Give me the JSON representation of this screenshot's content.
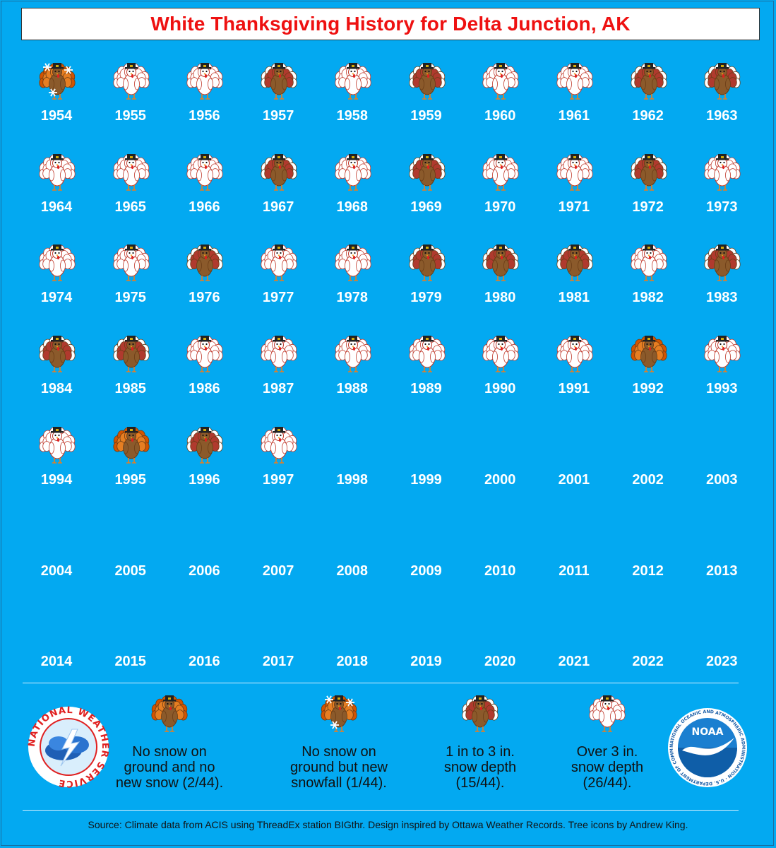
{
  "title": "White Thanksgiving History for Delta Junction, AK",
  "colors": {
    "background": "#03a9f1",
    "title": "#ee1111",
    "turkey_brown": "#8b5a2b",
    "feather_red": "#c0392b",
    "feather_orange": "#e67e22"
  },
  "chart_data": {
    "type": "table",
    "categories": [
      "no_snow_no_new",
      "no_snow_new_snowfall",
      "1_to_3_in",
      "over_3_in"
    ],
    "years": [
      {
        "year": "1954",
        "cat": "new"
      },
      {
        "year": "1955",
        "cat": "over3"
      },
      {
        "year": "1956",
        "cat": "over3"
      },
      {
        "year": "1957",
        "cat": "1to3"
      },
      {
        "year": "1958",
        "cat": "over3"
      },
      {
        "year": "1959",
        "cat": "1to3"
      },
      {
        "year": "1960",
        "cat": "over3"
      },
      {
        "year": "1961",
        "cat": "over3"
      },
      {
        "year": "1962",
        "cat": "1to3"
      },
      {
        "year": "1963",
        "cat": "1to3"
      },
      {
        "year": "1964",
        "cat": "over3"
      },
      {
        "year": "1965",
        "cat": "over3"
      },
      {
        "year": "1966",
        "cat": "over3"
      },
      {
        "year": "1967",
        "cat": "1to3"
      },
      {
        "year": "1968",
        "cat": "over3"
      },
      {
        "year": "1969",
        "cat": "1to3"
      },
      {
        "year": "1970",
        "cat": "over3"
      },
      {
        "year": "1971",
        "cat": "over3"
      },
      {
        "year": "1972",
        "cat": "1to3"
      },
      {
        "year": "1973",
        "cat": "over3"
      },
      {
        "year": "1974",
        "cat": "over3"
      },
      {
        "year": "1975",
        "cat": "over3"
      },
      {
        "year": "1976",
        "cat": "1to3"
      },
      {
        "year": "1977",
        "cat": "over3"
      },
      {
        "year": "1978",
        "cat": "over3"
      },
      {
        "year": "1979",
        "cat": "1to3"
      },
      {
        "year": "1980",
        "cat": "1to3"
      },
      {
        "year": "1981",
        "cat": "1to3"
      },
      {
        "year": "1982",
        "cat": "over3"
      },
      {
        "year": "1983",
        "cat": "1to3"
      },
      {
        "year": "1984",
        "cat": "1to3"
      },
      {
        "year": "1985",
        "cat": "1to3"
      },
      {
        "year": "1986",
        "cat": "over3"
      },
      {
        "year": "1987",
        "cat": "over3"
      },
      {
        "year": "1988",
        "cat": "over3"
      },
      {
        "year": "1989",
        "cat": "over3"
      },
      {
        "year": "1990",
        "cat": "over3"
      },
      {
        "year": "1991",
        "cat": "over3"
      },
      {
        "year": "1992",
        "cat": "none"
      },
      {
        "year": "1993",
        "cat": "over3"
      },
      {
        "year": "1994",
        "cat": "over3"
      },
      {
        "year": "1995",
        "cat": "none"
      },
      {
        "year": "1996",
        "cat": "1to3"
      },
      {
        "year": "1997",
        "cat": "over3"
      },
      {
        "year": "1998",
        "cat": ""
      },
      {
        "year": "1999",
        "cat": ""
      },
      {
        "year": "2000",
        "cat": ""
      },
      {
        "year": "2001",
        "cat": ""
      },
      {
        "year": "2002",
        "cat": ""
      },
      {
        "year": "2003",
        "cat": ""
      },
      {
        "year": "2004",
        "cat": ""
      },
      {
        "year": "2005",
        "cat": ""
      },
      {
        "year": "2006",
        "cat": ""
      },
      {
        "year": "2007",
        "cat": ""
      },
      {
        "year": "2008",
        "cat": ""
      },
      {
        "year": "2009",
        "cat": ""
      },
      {
        "year": "2010",
        "cat": ""
      },
      {
        "year": "2011",
        "cat": ""
      },
      {
        "year": "2012",
        "cat": ""
      },
      {
        "year": "2013",
        "cat": ""
      },
      {
        "year": "2014",
        "cat": ""
      },
      {
        "year": "2015",
        "cat": ""
      },
      {
        "year": "2016",
        "cat": ""
      },
      {
        "year": "2017",
        "cat": ""
      },
      {
        "year": "2018",
        "cat": ""
      },
      {
        "year": "2019",
        "cat": ""
      },
      {
        "year": "2020",
        "cat": ""
      },
      {
        "year": "2021",
        "cat": ""
      },
      {
        "year": "2022",
        "cat": ""
      },
      {
        "year": "2023",
        "cat": ""
      }
    ],
    "legend": [
      {
        "key": "none",
        "label": "No snow on\nground and no\nnew snow (2/44)."
      },
      {
        "key": "new",
        "label": "No snow on\nground but new\nsnowfall (1/44)."
      },
      {
        "key": "1to3",
        "label": "1 in to 3 in.\nsnow depth\n(15/44)."
      },
      {
        "key": "over3",
        "label": "Over 3 in.\nsnow depth\n(26/44)."
      }
    ]
  },
  "logos": {
    "nws": {
      "text": "NATIONAL WEATHER SERVICE"
    },
    "noaa": {
      "center": "NOAA",
      "ring": "NATIONAL OCEANIC AND ATMOSPHERIC ADMINISTRATION · U.S. DEPARTMENT OF COMMERCE"
    }
  },
  "source": "Source: Climate data from ACIS using ThreadEx station BIGthr. Design inspired by Ottawa Weather Records. Tree icons by Andrew King."
}
